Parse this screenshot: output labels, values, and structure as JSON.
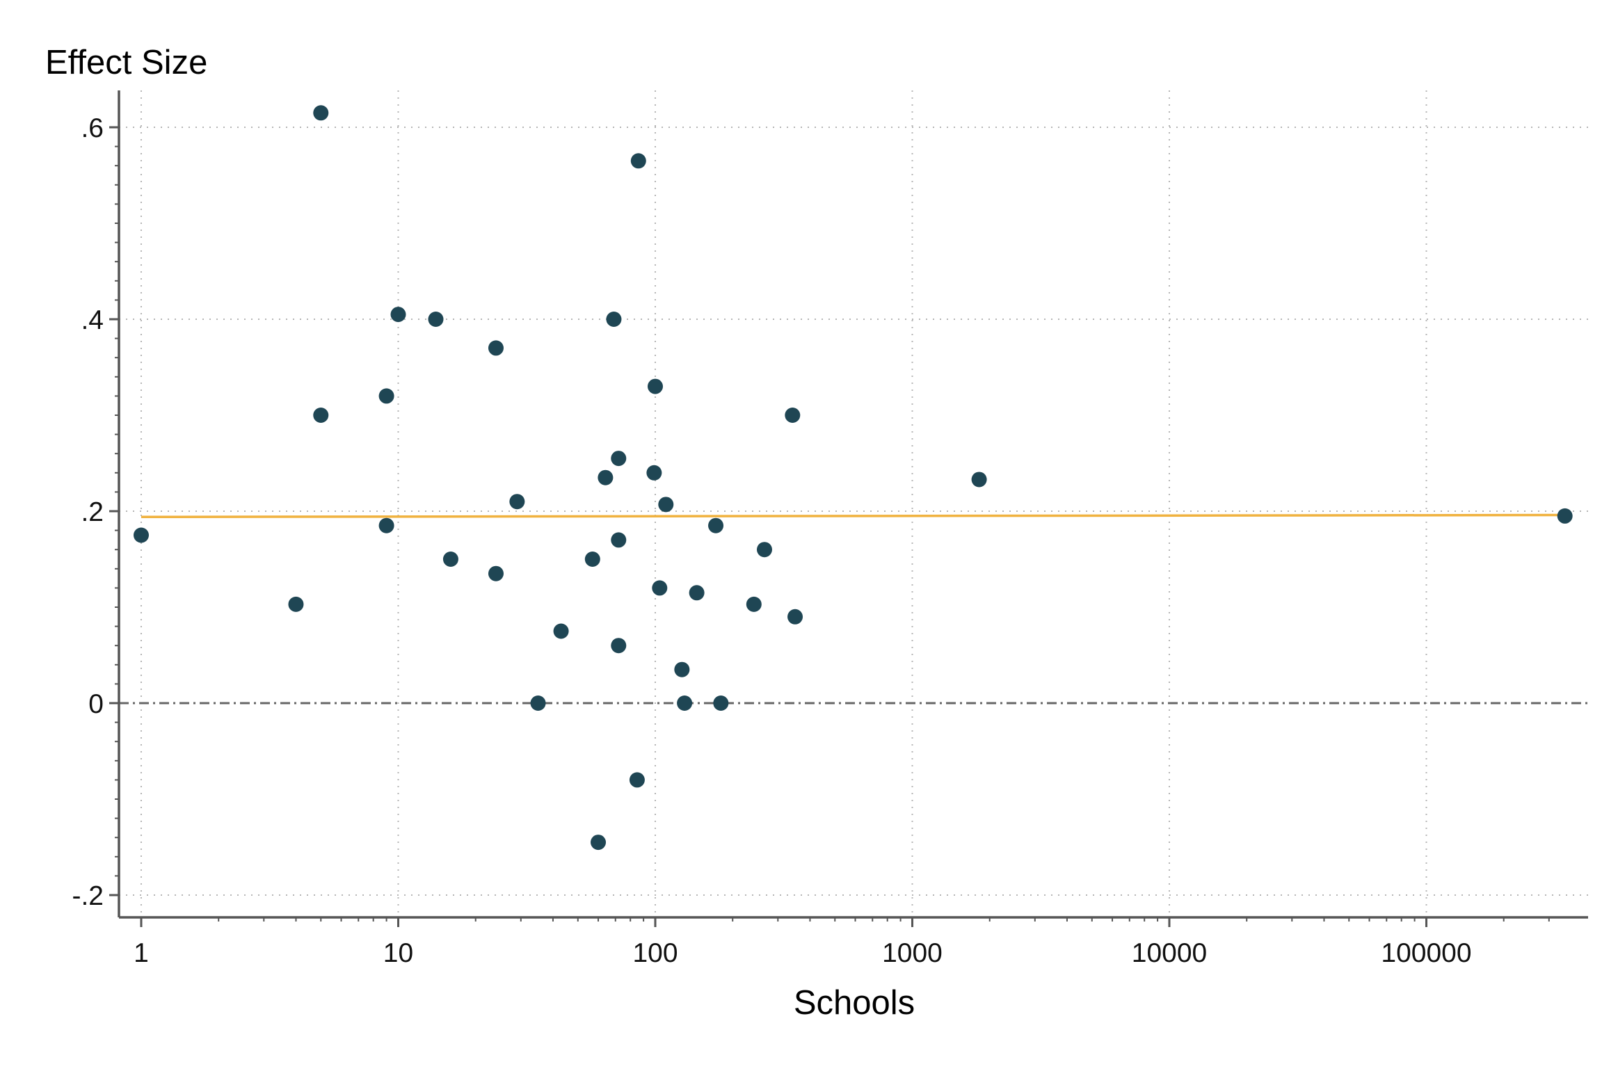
{
  "chart_data": {
    "type": "scatter",
    "title": "",
    "xlabel": "Schools",
    "ylabel": "Effect Size",
    "x_scale": "log",
    "xlim": [
      1,
      350000
    ],
    "ylim": [
      -0.2,
      0.6
    ],
    "x_ticks": [
      1,
      10,
      100,
      1000,
      10000,
      100000
    ],
    "x_tick_labels": [
      "1",
      "10",
      "100",
      "1000",
      "10000",
      "100000"
    ],
    "y_ticks": [
      -0.2,
      0,
      0.2,
      0.4,
      0.6
    ],
    "y_tick_labels": [
      "-.2",
      "0",
      ".2",
      ".4",
      ".6"
    ],
    "grid": true,
    "legend": "none",
    "colors": {
      "points": "#1f4654",
      "fit_line": "#f0b23f",
      "zero_line": "#666666",
      "grid": "#b5b5b5",
      "axis": "#555555"
    },
    "points": [
      {
        "x": 1,
        "y": 0.175
      },
      {
        "x": 4,
        "y": 0.103
      },
      {
        "x": 5,
        "y": 0.615
      },
      {
        "x": 5,
        "y": 0.3
      },
      {
        "x": 9,
        "y": 0.32
      },
      {
        "x": 9,
        "y": 0.185
      },
      {
        "x": 10,
        "y": 0.405
      },
      {
        "x": 14,
        "y": 0.4
      },
      {
        "x": 16,
        "y": 0.15
      },
      {
        "x": 24,
        "y": 0.37
      },
      {
        "x": 24,
        "y": 0.135
      },
      {
        "x": 29,
        "y": 0.21
      },
      {
        "x": 35,
        "y": 0.0
      },
      {
        "x": 43,
        "y": 0.075
      },
      {
        "x": 57,
        "y": 0.15
      },
      {
        "x": 60,
        "y": -0.145
      },
      {
        "x": 64,
        "y": 0.235
      },
      {
        "x": 69,
        "y": 0.4
      },
      {
        "x": 72,
        "y": 0.255
      },
      {
        "x": 72,
        "y": 0.17
      },
      {
        "x": 72,
        "y": 0.06
      },
      {
        "x": 85,
        "y": -0.08
      },
      {
        "x": 86,
        "y": 0.565
      },
      {
        "x": 99,
        "y": 0.24
      },
      {
        "x": 100,
        "y": 0.33
      },
      {
        "x": 104,
        "y": 0.12
      },
      {
        "x": 110,
        "y": 0.207
      },
      {
        "x": 127,
        "y": 0.035
      },
      {
        "x": 130,
        "y": 0.0
      },
      {
        "x": 145,
        "y": 0.115
      },
      {
        "x": 172,
        "y": 0.185
      },
      {
        "x": 180,
        "y": 0.0
      },
      {
        "x": 242,
        "y": 0.103
      },
      {
        "x": 266,
        "y": 0.16
      },
      {
        "x": 342,
        "y": 0.3
      },
      {
        "x": 350,
        "y": 0.09
      },
      {
        "x": 1820,
        "y": 0.233
      },
      {
        "x": 346000,
        "y": 0.195
      }
    ],
    "fit_line": {
      "x": [
        1,
        346000
      ],
      "y": [
        0.194,
        0.196
      ]
    },
    "reference_line_y": 0
  }
}
